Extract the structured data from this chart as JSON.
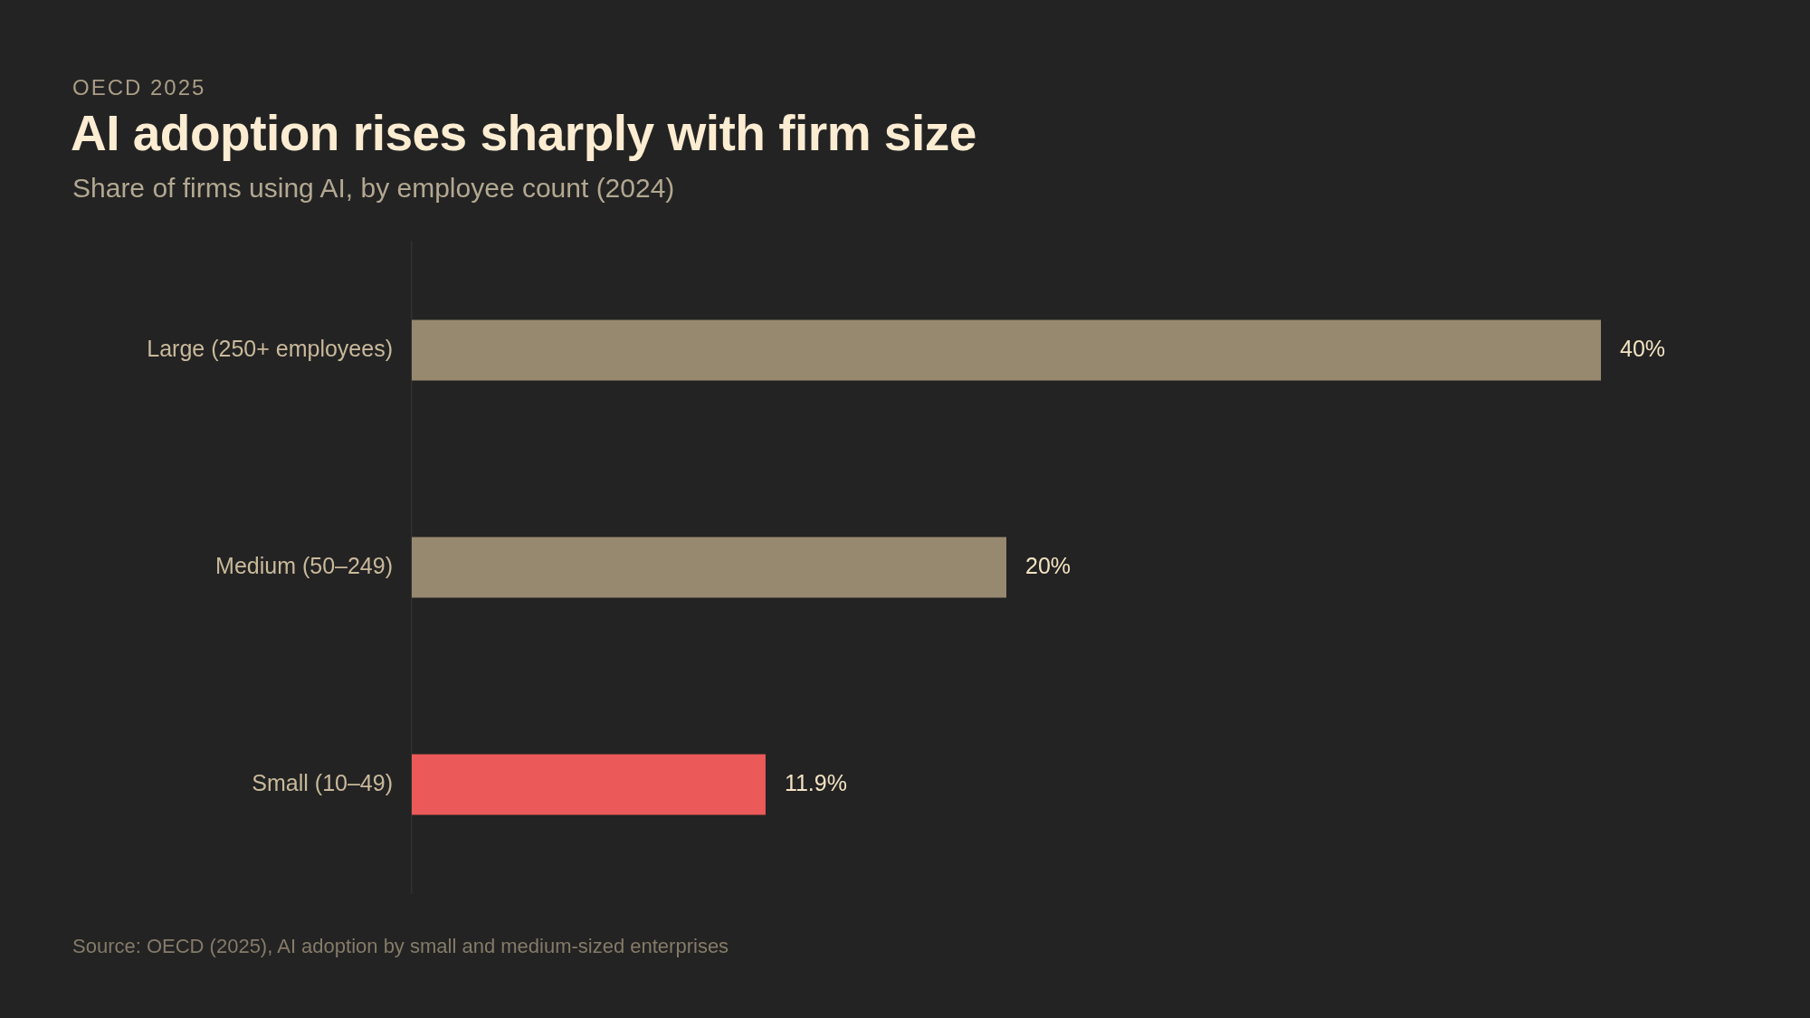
{
  "chart_data": {
    "type": "bar",
    "orientation": "horizontal",
    "title": "AI adoption rises sharply with firm size",
    "subtitle": "Share of firms using AI, by employee count (2024)",
    "annotations": [
      "OECD 2025",
      "Source: OECD (2025), AI adoption by small and medium-sized enterprises"
    ],
    "categories": [
      "Large (250+ employees)",
      "Medium (50–249)",
      "Small (10–49)"
    ],
    "values": [
      40,
      20,
      11.9
    ],
    "colors": [
      "#978970",
      "#978970",
      "#ec5959"
    ],
    "value_labels": [
      "40%",
      "20%",
      "11.9%"
    ],
    "grid": false,
    "legend": false
  }
}
